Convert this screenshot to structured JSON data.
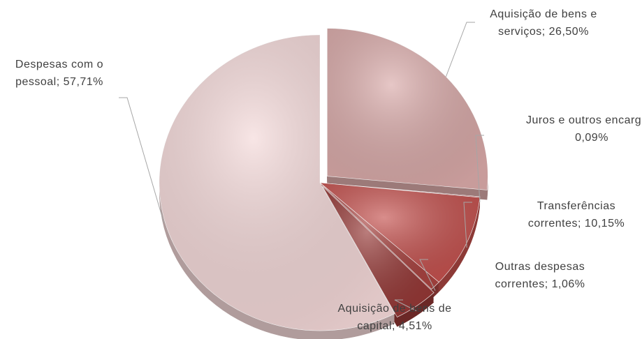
{
  "chart_data": {
    "type": "pie",
    "categories": [
      "Aquisição de bens e serviços",
      "Juros e outros encargos",
      "Transferências correntes",
      "Outras despesas correntes",
      "Aquisição de bens de capital",
      "Despesas com o pessoal"
    ],
    "values": [
      26.5,
      0.09,
      10.15,
      1.06,
      4.51,
      57.71
    ],
    "value_labels": [
      "26,50%",
      "0,09%",
      "10,15%",
      "1,06%",
      "4,51%",
      "57,71%"
    ],
    "label_separator": ";",
    "colors": [
      "#d9a9a8",
      "#a85a58",
      "#c4504d",
      "#a84340",
      "#953735",
      "#f4d8d8"
    ]
  }
}
